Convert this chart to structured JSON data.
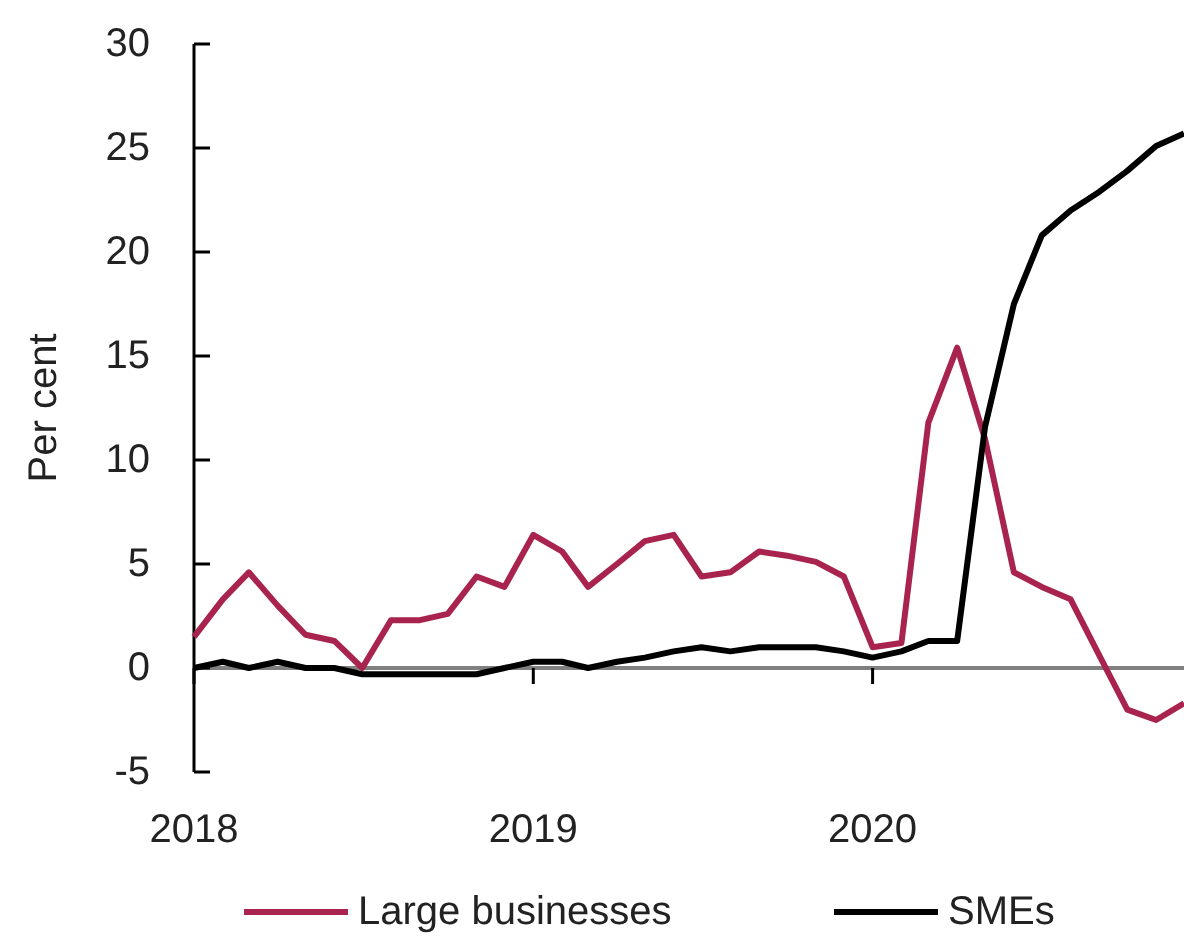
{
  "chart_data": {
    "type": "line",
    "ylabel": "Per cent",
    "x": [
      "2018-01",
      "2018-02",
      "2018-03",
      "2018-04",
      "2018-05",
      "2018-06",
      "2018-07",
      "2018-08",
      "2018-09",
      "2018-10",
      "2018-11",
      "2018-12",
      "2019-01",
      "2019-02",
      "2019-03",
      "2019-04",
      "2019-05",
      "2019-06",
      "2019-07",
      "2019-08",
      "2019-09",
      "2019-10",
      "2019-11",
      "2019-12",
      "2020-01",
      "2020-02",
      "2020-03",
      "2020-04",
      "2020-05",
      "2020-06",
      "2020-07",
      "2020-08",
      "2020-09",
      "2020-10",
      "2020-11",
      "2020-12"
    ],
    "series": [
      {
        "name": "Large businesses",
        "color": "#a8244f",
        "values": [
          1.5,
          3.3,
          4.6,
          3.0,
          1.6,
          1.3,
          0,
          2.3,
          2.3,
          2.6,
          4.4,
          3.9,
          6.4,
          5.6,
          3.9,
          5.0,
          6.1,
          6.4,
          4.4,
          4.6,
          5.6,
          5.4,
          5.1,
          4.4,
          1.0,
          1.2,
          11.8,
          15.4,
          11.0,
          4.6,
          3.9,
          3.3,
          0.6,
          -2.0,
          -2.5,
          -1.7
        ]
      },
      {
        "name": "SMEs",
        "color": "#000000",
        "values": [
          0,
          0.3,
          0,
          0.3,
          0,
          0,
          -0.3,
          -0.3,
          -0.3,
          -0.3,
          -0.3,
          0,
          0.3,
          0.3,
          0,
          0.3,
          0.5,
          0.8,
          1.0,
          0.8,
          1.0,
          1.0,
          1.0,
          0.8,
          0.5,
          0.8,
          1.3,
          1.3,
          11.6,
          17.5,
          20.8,
          22.0,
          22.9,
          23.9,
          25.1,
          25.7
        ]
      }
    ],
    "xlim": [
      "2018-01",
      "2020-12"
    ],
    "xticks": [
      {
        "value": "2018-01",
        "label": "2018"
      },
      {
        "value": "2019-01",
        "label": "2019"
      },
      {
        "value": "2020-01",
        "label": "2020"
      }
    ],
    "ylim": [
      -5,
      30
    ],
    "yticks": [
      -5,
      0,
      5,
      10,
      15,
      20,
      25,
      30
    ],
    "ref_lines": [
      {
        "axis": "y",
        "value": 0,
        "color": "#808080"
      }
    ],
    "grid": false,
    "legend": "bottom"
  }
}
